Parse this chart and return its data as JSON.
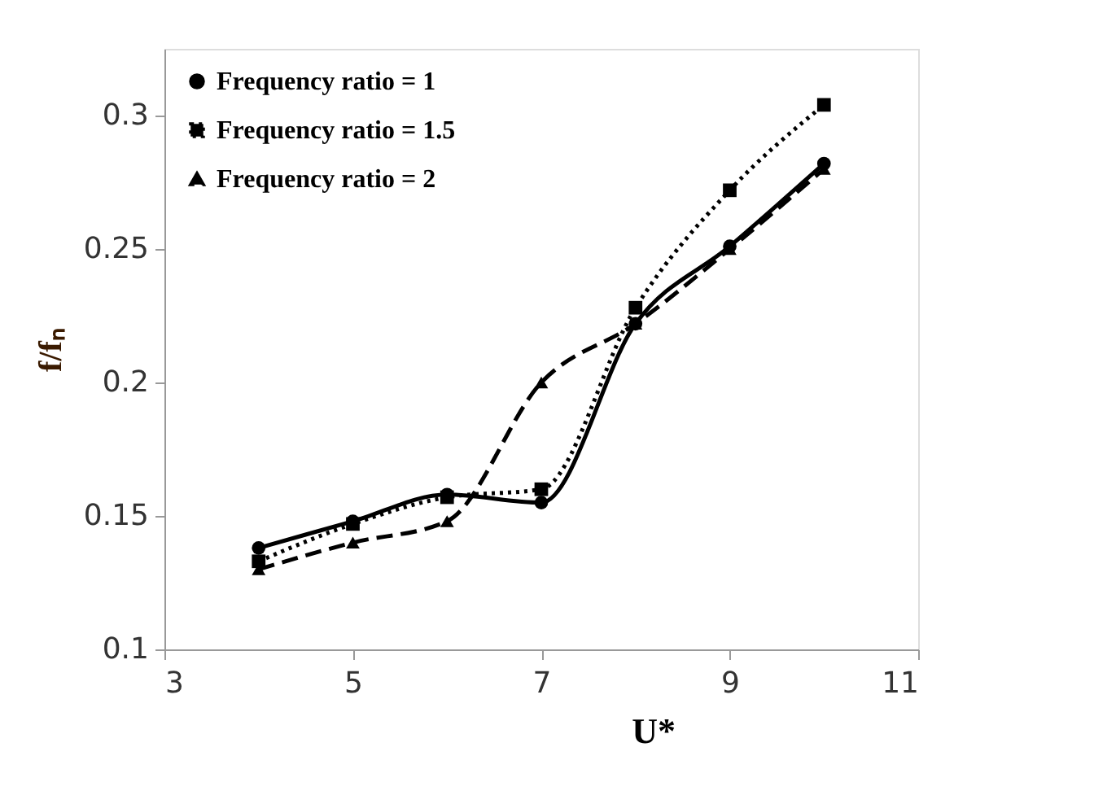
{
  "chart_data": {
    "type": "line",
    "xlabel": "U*",
    "ylabel": "f/fₙ",
    "x": [
      4,
      5,
      6,
      7,
      8,
      9,
      10
    ],
    "xlim": [
      3,
      11
    ],
    "xticks": [
      3,
      5,
      7,
      9,
      11
    ],
    "ylim": [
      0.1,
      0.325
    ],
    "yticks": [
      0.1,
      0.15,
      0.2,
      0.25,
      0.3
    ],
    "grid": false,
    "legend": "top left",
    "series": [
      {
        "name": "Frequency ratio = 1",
        "color": "#000000",
        "marker": "circle",
        "line_style": "solid",
        "values": [
          0.138,
          0.148,
          0.158,
          0.155,
          0.222,
          0.251,
          0.282
        ]
      },
      {
        "name": "Frequency ratio = 1.5",
        "color": "#000000",
        "marker": "square",
        "line_style": "dotted",
        "values": [
          0.133,
          0.147,
          0.157,
          0.16,
          0.228,
          0.272,
          0.304
        ]
      },
      {
        "name": "Frequency ratio = 2",
        "color": "#000000",
        "marker": "triangle",
        "line_style": "dashed",
        "values": [
          0.13,
          0.14,
          0.148,
          0.2,
          0.222,
          0.25,
          0.28
        ]
      }
    ]
  }
}
